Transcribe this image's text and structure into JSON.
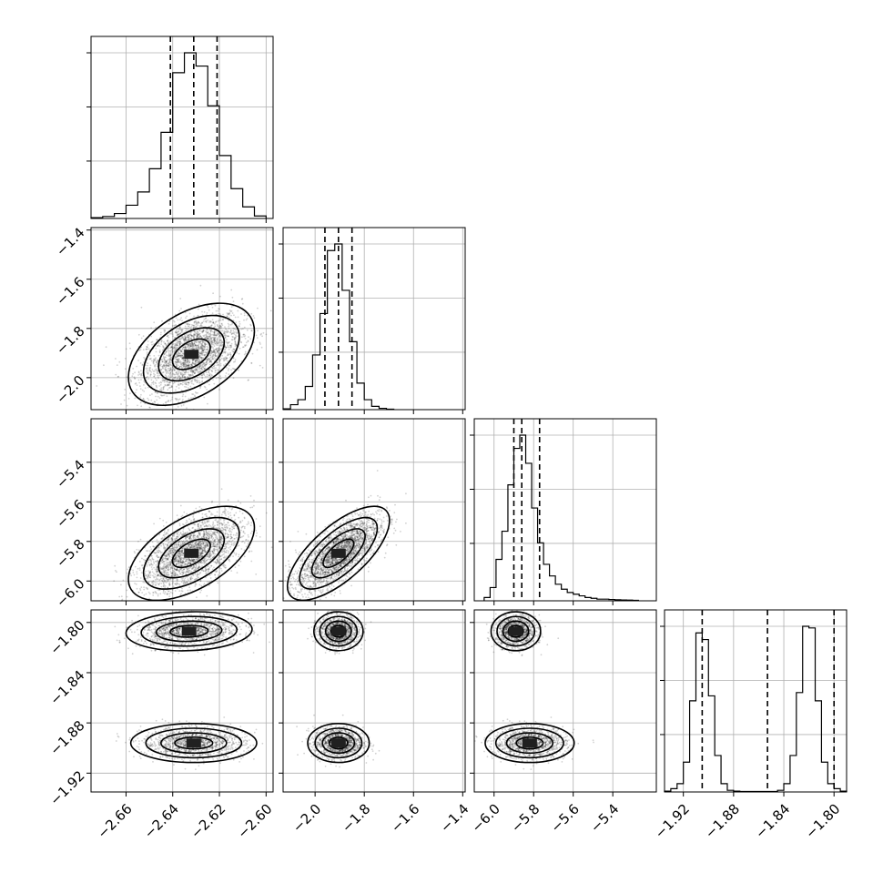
{
  "chart_data": {
    "type": "corner",
    "title": "",
    "parameters": [
      {
        "range": [
          -2.675,
          -2.597
        ],
        "ticks": [
          -2.66,
          -2.64,
          -2.62,
          -2.6
        ],
        "tick_labels": [
          "−2.66",
          "−2.64",
          "−2.62",
          "−2.60"
        ],
        "quantiles": [
          -2.641,
          -2.631,
          -2.621
        ],
        "hist_bins": [
          -2.675,
          -2.67,
          -2.665,
          -2.66,
          -2.655,
          -2.65,
          -2.645,
          -2.64,
          -2.635,
          -2.63,
          -2.625,
          -2.62,
          -2.615,
          -2.61,
          -2.605,
          -2.6
        ],
        "hist_counts": [
          0.5,
          1.2,
          3,
          8,
          16,
          30,
          52,
          88,
          100,
          92,
          68,
          38,
          18,
          7,
          1.5
        ]
      },
      {
        "range": [
          -2.13,
          -1.39
        ],
        "ticks": [
          -2.0,
          -1.8,
          -1.6,
          -1.4
        ],
        "tick_labels": [
          "−2.0",
          "−1.8",
          "−1.6",
          "−1.4"
        ],
        "quantiles": [
          -1.96,
          -1.905,
          -1.85
        ],
        "hist_bins": [
          -2.13,
          -2.1,
          -2.07,
          -2.04,
          -2.01,
          -1.98,
          -1.95,
          -1.92,
          -1.89,
          -1.86,
          -1.83,
          -1.8,
          -1.77,
          -1.74,
          -1.71,
          -1.68
        ],
        "hist_counts": [
          0.5,
          3,
          6,
          14,
          33,
          58,
          96,
          100,
          72,
          41,
          16,
          6,
          2,
          0.8,
          0.3
        ]
      },
      {
        "range": [
          -6.1,
          -5.18
        ],
        "ticks": [
          -6.0,
          -5.8,
          -5.6,
          -5.4
        ],
        "tick_labels": [
          "−6.0",
          "−5.8",
          "−5.6",
          "−5.4"
        ],
        "quantiles": [
          -5.9,
          -5.86,
          -5.77
        ],
        "hist_bins": [
          -6.05,
          -6.02,
          -5.99,
          -5.96,
          -5.93,
          -5.9,
          -5.87,
          -5.84,
          -5.81,
          -5.78,
          -5.75,
          -5.72,
          -5.69,
          -5.66,
          -5.63,
          -5.6,
          -5.57,
          -5.54,
          -5.51,
          -5.48,
          -5.45,
          -5.42,
          -5.39,
          -5.36,
          -5.33,
          -5.3,
          -5.27
        ],
        "hist_counts": [
          2,
          8,
          25,
          42,
          70,
          92,
          100,
          83,
          56,
          35,
          22,
          15,
          10,
          7,
          5,
          4,
          3,
          2,
          1.5,
          1,
          1,
          0.8,
          0.6,
          0.5,
          0.4,
          0.3
        ]
      },
      {
        "range": [
          -1.935,
          -1.79
        ],
        "ticks": [
          -1.92,
          -1.88,
          -1.84,
          -1.8
        ],
        "tick_labels": [
          "−1.92",
          "−1.88",
          "−1.84",
          "−1.80"
        ],
        "quantiles": [
          -1.905,
          -1.853,
          -1.8
        ],
        "hist_bins": [
          -1.935,
          -1.93,
          -1.925,
          -1.92,
          -1.915,
          -1.91,
          -1.905,
          -1.9,
          -1.895,
          -1.89,
          -1.885,
          -1.88,
          -1.875,
          -1.87,
          -1.865,
          -1.86,
          -1.855,
          -1.85,
          -1.845,
          -1.84,
          -1.835,
          -1.83,
          -1.825,
          -1.82,
          -1.815,
          -1.81,
          -1.805,
          -1.8,
          -1.795,
          -1.79
        ],
        "hist_counts": [
          0.5,
          2,
          5,
          18,
          55,
          96,
          92,
          58,
          22,
          5,
          1,
          0.5,
          0.3,
          0.3,
          0.3,
          0.3,
          0.3,
          0.3,
          1,
          5,
          22,
          60,
          100,
          99,
          55,
          18,
          5,
          2,
          0.5
        ]
      }
    ],
    "pairs": [
      {
        "row": 1,
        "col": 0,
        "clusters": [
          {
            "mx": -2.632,
            "my": -1.905,
            "sx": 0.0108,
            "sy": 0.083,
            "rho": 0.45,
            "n": 2600
          }
        ]
      },
      {
        "row": 2,
        "col": 0,
        "clusters": [
          {
            "mx": -2.632,
            "my": -5.86,
            "sx": 0.0108,
            "sy": 0.095,
            "rho": 0.55,
            "n": 2600
          }
        ]
      },
      {
        "row": 2,
        "col": 1,
        "clusters": [
          {
            "mx": -1.905,
            "my": -5.86,
            "sx": 0.083,
            "sy": 0.095,
            "rho": 0.7,
            "n": 2600
          }
        ]
      },
      {
        "row": 3,
        "col": 0,
        "clusters": [
          {
            "mx": -2.633,
            "my": -1.807,
            "sx": 0.0108,
            "sy": 0.0062,
            "rho": 0.1,
            "n": 1300
          },
          {
            "mx": -2.631,
            "my": -1.896,
            "sx": 0.0108,
            "sy": 0.0062,
            "rho": 0.0,
            "n": 1300
          }
        ]
      },
      {
        "row": 3,
        "col": 1,
        "clusters": [
          {
            "mx": -1.905,
            "my": -1.807,
            "sx": 0.04,
            "sy": 0.0062,
            "rho": 0.0,
            "n": 1300
          },
          {
            "mx": -1.905,
            "my": -1.896,
            "sx": 0.05,
            "sy": 0.0062,
            "rho": 0.0,
            "n": 1300
          }
        ]
      },
      {
        "row": 3,
        "col": 2,
        "clusters": [
          {
            "mx": -5.89,
            "my": -1.807,
            "sx": 0.05,
            "sy": 0.0062,
            "rho": 0.0,
            "n": 1300
          },
          {
            "mx": -5.82,
            "my": -1.896,
            "sx": 0.09,
            "sy": 0.0062,
            "rho": 0.0,
            "n": 1300
          }
        ]
      }
    ],
    "grid": true,
    "xlabel": "",
    "ylabel": ""
  }
}
